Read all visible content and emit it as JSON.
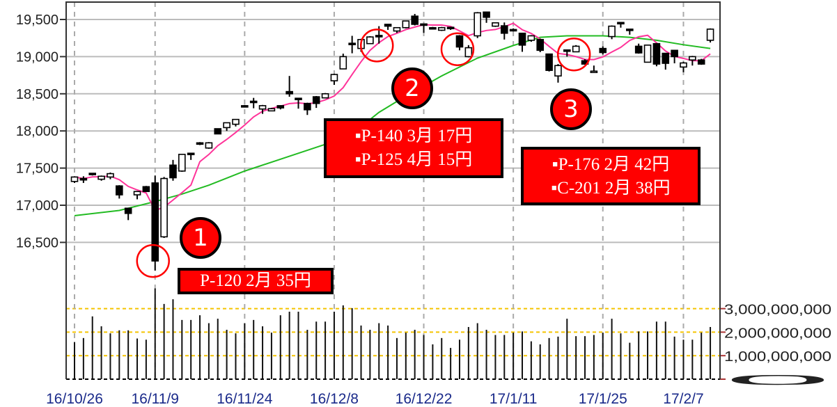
{
  "chart_data": {
    "type": "candlestick",
    "title": "",
    "xlabel": "",
    "ylabel": "",
    "price_ylim": [
      16000,
      19700
    ],
    "price_ticks": [
      "19,500",
      "19,000",
      "18,500",
      "18,000",
      "17,500",
      "17,000",
      "16,500"
    ],
    "price_tick_values": [
      19500,
      19000,
      18500,
      18000,
      17500,
      17000,
      16500
    ],
    "volume_ticks": [
      "3,000,000,000",
      "2,000,000,000",
      "1,000,000,000",
      "0"
    ],
    "volume_tick_values": [
      3000000000,
      2000000000,
      1000000000,
      0
    ],
    "x_ticks": [
      {
        "label": "16/10/26",
        "index": 0
      },
      {
        "label": "16/11/9",
        "index": 9
      },
      {
        "label": "16/11/24",
        "index": 19
      },
      {
        "label": "16/12/8",
        "index": 29
      },
      {
        "label": "16/12/22",
        "index": 39
      },
      {
        "label": "17/1/11",
        "index": 49
      },
      {
        "label": "17/1/25",
        "index": 59
      },
      {
        "label": "17/2/7",
        "index": 68
      }
    ],
    "grid": true,
    "ohlc": [
      [
        17320,
        17390,
        17300,
        17380
      ],
      [
        17360,
        17390,
        17300,
        17340
      ],
      [
        17430,
        17435,
        17400,
        17425
      ],
      [
        17350,
        17400,
        17330,
        17390
      ],
      [
        17380,
        17440,
        17350,
        17425
      ],
      [
        17260,
        17270,
        17090,
        17140
      ],
      [
        16960,
        16960,
        16800,
        16890
      ],
      [
        17140,
        17190,
        17080,
        17185
      ],
      [
        17250,
        17260,
        17180,
        17185
      ],
      [
        17300,
        17400,
        16120,
        16250
      ],
      [
        16575,
        17380,
        16560,
        17360
      ],
      [
        17540,
        17610,
        17330,
        17370
      ],
      [
        17460,
        17690,
        17450,
        17685
      ],
      [
        17700,
        17700,
        17610,
        17690
      ],
      [
        17840,
        17850,
        17810,
        17830
      ],
      [
        17770,
        17850,
        17760,
        17840
      ],
      [
        18030,
        18030,
        17960,
        17960
      ],
      [
        18045,
        18110,
        18000,
        18110
      ],
      [
        18090,
        18160,
        18060,
        18155
      ],
      [
        18340,
        18350,
        18320,
        18330
      ],
      [
        18400,
        18445,
        18305,
        18390
      ],
      [
        18295,
        18350,
        18230,
        18340
      ],
      [
        18270,
        18310,
        18265,
        18300
      ],
      [
        18340,
        18345,
        18290,
        18310
      ],
      [
        18530,
        18740,
        18460,
        18500
      ],
      [
        18440,
        18445,
        18300,
        18435
      ],
      [
        18370,
        18380,
        18215,
        18285
      ],
      [
        18460,
        18470,
        18310,
        18370
      ],
      [
        18445,
        18510,
        18440,
        18500
      ],
      [
        18675,
        18770,
        18620,
        18760
      ],
      [
        18835,
        19040,
        18830,
        19000
      ],
      [
        19180,
        19280,
        19045,
        19170
      ],
      [
        19110,
        19240,
        19065,
        19230
      ],
      [
        19175,
        19275,
        19170,
        19265
      ],
      [
        19285,
        19410,
        19175,
        19275
      ],
      [
        19435,
        19440,
        19360,
        19410
      ],
      [
        19345,
        19395,
        19320,
        19390
      ],
      [
        19390,
        19485,
        19380,
        19480
      ],
      [
        19545,
        19575,
        19420,
        19435
      ],
      [
        19440,
        19440,
        19320,
        19435
      ],
      [
        19390,
        19400,
        19370,
        19385
      ],
      [
        19355,
        19400,
        19345,
        19390
      ],
      [
        19395,
        19395,
        19360,
        19390
      ],
      [
        19280,
        19290,
        19085,
        19130
      ],
      [
        19000,
        19155,
        18990,
        19120
      ],
      [
        19280,
        19600,
        19250,
        19590
      ],
      [
        19600,
        19605,
        19455,
        19530
      ],
      [
        19410,
        19460,
        19400,
        19455
      ],
      [
        19415,
        19460,
        19230,
        19315
      ],
      [
        19365,
        19380,
        19340,
        19355
      ],
      [
        19315,
        19320,
        19065,
        19155
      ],
      [
        19220,
        19290,
        19200,
        19280
      ],
      [
        19230,
        19240,
        19060,
        19085
      ],
      [
        19035,
        19040,
        18800,
        18815
      ],
      [
        18740,
        18900,
        18650,
        18880
      ],
      [
        19090,
        19095,
        19000,
        19080
      ],
      [
        19065,
        19155,
        19060,
        19140
      ],
      [
        18945,
        18965,
        18890,
        18900
      ],
      [
        18800,
        18880,
        18795,
        18805
      ],
      [
        19110,
        19140,
        19030,
        19055
      ],
      [
        19270,
        19420,
        19235,
        19410
      ],
      [
        19460,
        19460,
        19390,
        19455
      ],
      [
        19370,
        19370,
        19295,
        19365
      ],
      [
        19140,
        19175,
        19040,
        19050
      ],
      [
        18925,
        19160,
        18920,
        19155
      ],
      [
        19175,
        19180,
        18870,
        18900
      ],
      [
        19045,
        19050,
        18825,
        18910
      ],
      [
        19085,
        19090,
        18910,
        19000
      ],
      [
        18860,
        18930,
        18790,
        18915
      ],
      [
        18955,
        19010,
        18880,
        19000
      ],
      [
        18955,
        18970,
        18890,
        18900
      ],
      [
        19220,
        19380,
        19190,
        19370
      ]
    ],
    "volume": [
      1580000000,
      1750000000,
      2670000000,
      2250000000,
      1950000000,
      2080000000,
      2080000000,
      1730000000,
      1680000000,
      3860000000,
      3200000000,
      3400000000,
      2520000000,
      2520000000,
      2720000000,
      2380000000,
      2570000000,
      2100000000,
      1950000000,
      2380000000,
      2520000000,
      2250000000,
      1980000000,
      2720000000,
      2870000000,
      2870000000,
      2100000000,
      2450000000,
      2450000000,
      2870000000,
      3140000000,
      3020000000,
      2280000000,
      2100000000,
      2380000000,
      2280000000,
      1750000000,
      1980000000,
      2100000000,
      1880000000,
      1480000000,
      1750000000,
      1330000000,
      1680000000,
      2220000000,
      2380000000,
      2100000000,
      1880000000,
      1880000000,
      1980000000,
      2030000000,
      1610000000,
      1480000000,
      1750000000,
      1810000000,
      2570000000,
      1830000000,
      1830000000,
      1880000000,
      1980000000,
      2570000000,
      1950000000,
      1550000000,
      2030000000,
      2030000000,
      2450000000,
      2450000000,
      1810000000,
      1680000000,
      1680000000,
      1980000000,
      2220000000
    ],
    "ma_short_color": "#ff3399",
    "ma_long_color": "#22bb22",
    "ma_long": [
      [
        0,
        16860
      ],
      [
        5,
        16930
      ],
      [
        9,
        17050
      ],
      [
        12,
        17150
      ],
      [
        15,
        17270
      ],
      [
        19,
        17460
      ],
      [
        24,
        17660
      ],
      [
        29,
        17860
      ],
      [
        31,
        17960
      ],
      [
        34,
        18250
      ],
      [
        37,
        18470
      ],
      [
        41,
        18740
      ],
      [
        45,
        18980
      ],
      [
        49,
        19150
      ],
      [
        52,
        19260
      ],
      [
        55,
        19280
      ],
      [
        59,
        19280
      ],
      [
        62,
        19260
      ],
      [
        65,
        19220
      ],
      [
        68,
        19160
      ],
      [
        71,
        19110
      ]
    ],
    "volume_gridline_color": "#f5c400",
    "annotations": [
      {
        "marker": "1",
        "circle_index": 9,
        "circle_price": 16250,
        "lines": [
          "P-120 2月 35円"
        ]
      },
      {
        "marker": "2",
        "circle_index": 34,
        "circle_price": 19150,
        "lines": [
          "▪P-140 3月 17円",
          "▪P-125 4月 15円"
        ]
      },
      {
        "marker": "",
        "circle_index": 43,
        "circle_price": 19100,
        "lines": []
      },
      {
        "marker": "3",
        "circle_index": 56,
        "circle_price": 19030,
        "lines": [
          "▪P-176 2月 42円",
          "▪C-201 2月 38円"
        ]
      }
    ],
    "annotation_color": "#ff0000"
  }
}
